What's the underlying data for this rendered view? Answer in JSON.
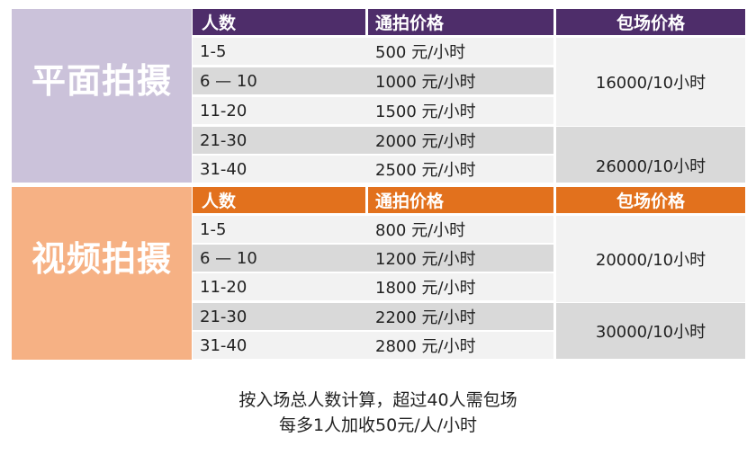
{
  "photo": {
    "title": "平面拍摄",
    "headers": {
      "people": "人数",
      "per_hour": "通拍价格",
      "package": "包场价格"
    },
    "rows": [
      {
        "people": "1-5",
        "price": "500 元/小时"
      },
      {
        "people": "6 — 10",
        "price": "1000 元/小时"
      },
      {
        "people": "11-20",
        "price": "1500 元/小时"
      },
      {
        "people": "21-30",
        "price": "2000 元/小时"
      },
      {
        "people": "31-40",
        "price": "2500 元/小时"
      }
    ],
    "packages": [
      "16000/10小时",
      "26000/10小时"
    ]
  },
  "video": {
    "title": "视频拍摄",
    "headers": {
      "people": "人数",
      "per_hour": "通拍价格",
      "package": "包场价格"
    },
    "rows": [
      {
        "people": "1-5",
        "price": "800 元/小时"
      },
      {
        "people": "6 — 10",
        "price": "1200 元/小时"
      },
      {
        "people": "11-20",
        "price": "1800 元/小时"
      },
      {
        "people": "21-30",
        "price": "2200 元/小时"
      },
      {
        "people": "31-40",
        "price": "2800 元/小时"
      }
    ],
    "packages": [
      "20000/10小时",
      "30000/10小时"
    ]
  },
  "notes": {
    "line1": "按入场总人数计算，超过40人需包场",
    "line2": "每多1人加收50元/人/小时"
  },
  "colors": {
    "photo_panel": "#cbc2da",
    "photo_header": "#4e2d6a",
    "video_panel": "#f6b184",
    "video_header": "#e2711d",
    "row_light": "#f2f2f2",
    "row_dark": "#d9d9d9"
  }
}
